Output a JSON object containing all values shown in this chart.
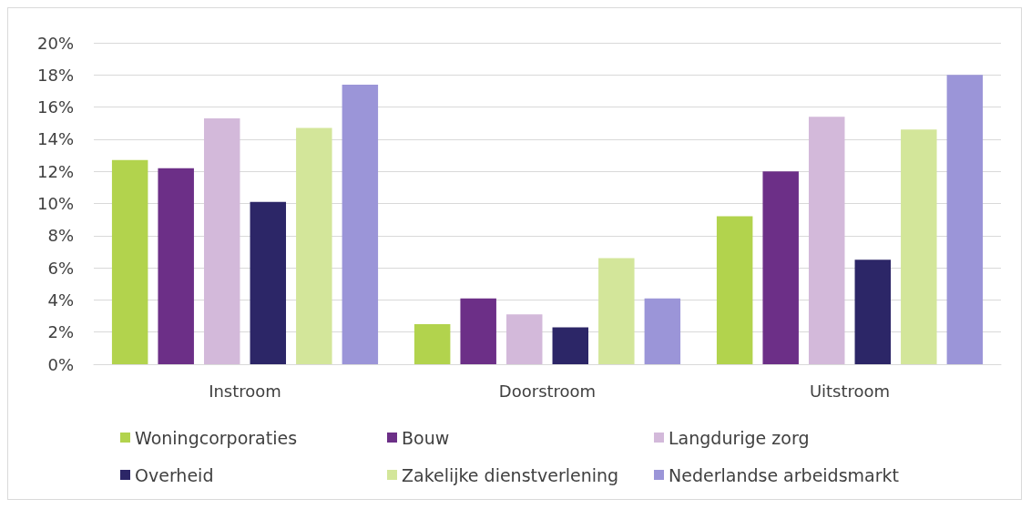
{
  "chart_data": {
    "type": "bar",
    "categories": [
      "Instroom",
      "Doorstroom",
      "Uitstroom"
    ],
    "series": [
      {
        "name": "Woningcorporaties",
        "color": "#b2d34d",
        "values": [
          12.7,
          2.5,
          9.2
        ]
      },
      {
        "name": "Bouw",
        "color": "#6c2f87",
        "values": [
          12.2,
          4.1,
          12.0
        ]
      },
      {
        "name": "Langdurige zorg",
        "color": "#d3b9da",
        "values": [
          15.3,
          3.1,
          15.4
        ]
      },
      {
        "name": "Overheid",
        "color": "#2c2667",
        "values": [
          10.1,
          2.3,
          6.5
        ]
      },
      {
        "name": "Zakelijke dienstverlening",
        "color": "#d3e69a",
        "values": [
          14.7,
          6.6,
          14.6
        ]
      },
      {
        "name": "Nederlandse arbeidsmarkt",
        "color": "#9b95d8",
        "values": [
          17.4,
          4.1,
          18.0
        ]
      }
    ],
    "ylim": [
      0,
      20
    ],
    "yticks": [
      {
        "value": 0,
        "label": "0%"
      },
      {
        "value": 2,
        "label": "2%"
      },
      {
        "value": 4,
        "label": "4%"
      },
      {
        "value": 6,
        "label": "6%"
      },
      {
        "value": 8,
        "label": "8%"
      },
      {
        "value": 10,
        "label": "10%"
      },
      {
        "value": 12,
        "label": "12%"
      },
      {
        "value": 14,
        "label": "14%"
      },
      {
        "value": 16,
        "label": "16%"
      },
      {
        "value": 18,
        "label": "18%"
      },
      {
        "value": 20,
        "label": "20%"
      }
    ],
    "grid": "y",
    "legend": "bottom"
  }
}
